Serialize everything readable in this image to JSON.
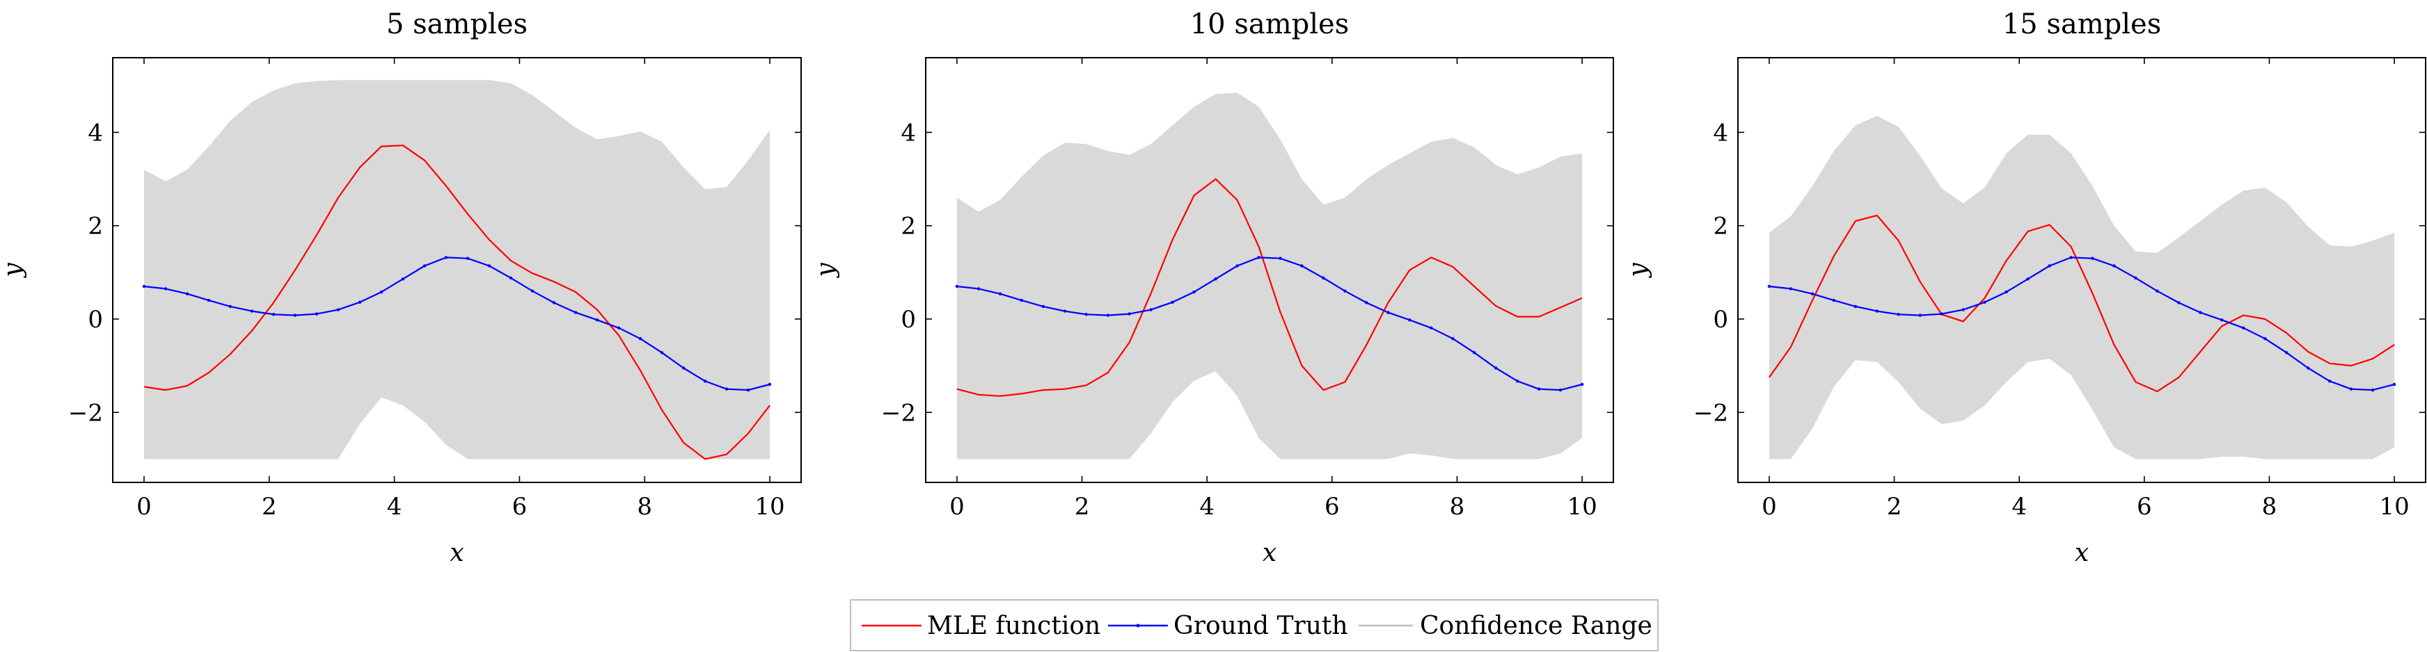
{
  "legend": {
    "mle_label": "MLE function",
    "truth_label": "Ground Truth",
    "confidence_label": "Confidence Range"
  },
  "colors": {
    "mle": "#ff0000",
    "truth": "#0000ff",
    "confidence": "#d9d9d9",
    "confidence_legend": "#bfbfbf"
  },
  "chart_data": [
    {
      "type": "line",
      "title": "5 samples",
      "xlabel": "x",
      "ylabel": "y",
      "xlim": [
        -0.5,
        10.5
      ],
      "ylim": [
        -3.5,
        5.6
      ],
      "xticks": [
        0,
        2,
        4,
        6,
        8,
        10
      ],
      "yticks": [
        -2,
        0,
        2,
        4
      ],
      "x": [
        0,
        0.345,
        0.69,
        1.034,
        1.379,
        1.724,
        2.069,
        2.414,
        2.759,
        3.103,
        3.448,
        3.793,
        4.138,
        4.483,
        4.828,
        5.172,
        5.517,
        5.862,
        6.207,
        6.552,
        6.897,
        7.241,
        7.586,
        7.931,
        8.276,
        8.621,
        8.966,
        9.31,
        9.655,
        10
      ],
      "series": [
        {
          "name": "MLE function",
          "values": [
            -1.45,
            -1.52,
            -1.43,
            -1.15,
            -0.75,
            -0.25,
            0.35,
            1.05,
            1.8,
            2.6,
            3.25,
            3.7,
            3.72,
            3.4,
            2.85,
            2.25,
            1.7,
            1.25,
            0.98,
            0.8,
            0.58,
            0.2,
            -0.35,
            -1.1,
            -1.95,
            -2.65,
            -3.0,
            -2.9,
            -2.45,
            -1.85
          ]
        },
        {
          "name": "Ground Truth",
          "values": [
            0.7,
            0.65,
            0.54,
            0.4,
            0.27,
            0.17,
            0.1,
            0.08,
            0.11,
            0.2,
            0.36,
            0.58,
            0.86,
            1.14,
            1.32,
            1.3,
            1.14,
            0.88,
            0.6,
            0.35,
            0.14,
            -0.02,
            -0.19,
            -0.42,
            -0.72,
            -1.05,
            -1.33,
            -1.5,
            -1.52,
            -1.4
          ]
        },
        {
          "name": "Confidence Range",
          "band": true,
          "upper": [
            3.2,
            2.95,
            3.2,
            3.7,
            4.25,
            4.65,
            4.9,
            5.05,
            5.1,
            5.12,
            5.12,
            5.12,
            5.12,
            5.12,
            5.12,
            5.12,
            5.12,
            5.05,
            4.8,
            4.45,
            4.1,
            3.85,
            3.92,
            4.02,
            3.8,
            3.25,
            2.78,
            2.83,
            3.4,
            4.05
          ],
          "lower": [
            -3,
            -3,
            -3,
            -3,
            -3,
            -3,
            -3,
            -3,
            -3,
            -3,
            -2.25,
            -1.68,
            -1.85,
            -2.2,
            -2.7,
            -3,
            -3,
            -3,
            -3,
            -3,
            -3,
            -3,
            -3,
            -3,
            -3,
            -3,
            -3,
            -3,
            -3,
            -3
          ]
        }
      ]
    },
    {
      "type": "line",
      "title": "10 samples",
      "xlabel": "x",
      "ylabel": "y",
      "xlim": [
        -0.5,
        10.5
      ],
      "ylim": [
        -3.5,
        5.6
      ],
      "xticks": [
        0,
        2,
        4,
        6,
        8,
        10
      ],
      "yticks": [
        -2,
        0,
        2,
        4
      ],
      "x": [
        0,
        0.345,
        0.69,
        1.034,
        1.379,
        1.724,
        2.069,
        2.414,
        2.759,
        3.103,
        3.448,
        3.793,
        4.138,
        4.483,
        4.828,
        5.172,
        5.517,
        5.862,
        6.207,
        6.552,
        6.897,
        7.241,
        7.586,
        7.931,
        8.276,
        8.621,
        8.966,
        9.31,
        9.655,
        10
      ],
      "series": [
        {
          "name": "MLE function",
          "values": [
            -1.5,
            -1.62,
            -1.65,
            -1.6,
            -1.52,
            -1.5,
            -1.42,
            -1.15,
            -0.5,
            0.55,
            1.7,
            2.65,
            3.0,
            2.55,
            1.55,
            0.15,
            -1.0,
            -1.52,
            -1.35,
            -0.55,
            0.35,
            1.05,
            1.32,
            1.12,
            0.7,
            0.28,
            0.05,
            0.05,
            0.25,
            0.45
          ]
        },
        {
          "name": "Ground Truth",
          "values": [
            0.7,
            0.65,
            0.54,
            0.4,
            0.27,
            0.17,
            0.1,
            0.08,
            0.11,
            0.2,
            0.36,
            0.58,
            0.86,
            1.14,
            1.32,
            1.3,
            1.14,
            0.88,
            0.6,
            0.35,
            0.14,
            -0.02,
            -0.19,
            -0.42,
            -0.72,
            -1.05,
            -1.33,
            -1.5,
            -1.52,
            -1.4
          ]
        },
        {
          "name": "Confidence Range",
          "band": true,
          "upper": [
            2.6,
            2.3,
            2.55,
            3.05,
            3.5,
            3.78,
            3.75,
            3.6,
            3.52,
            3.75,
            4.15,
            4.55,
            4.82,
            4.85,
            4.55,
            3.85,
            3.0,
            2.45,
            2.6,
            3.0,
            3.3,
            3.55,
            3.8,
            3.88,
            3.68,
            3.3,
            3.1,
            3.25,
            3.48,
            3.55
          ],
          "lower": [
            -3,
            -3,
            -3,
            -3,
            -3,
            -3,
            -3,
            -3,
            -3,
            -2.45,
            -1.78,
            -1.32,
            -1.12,
            -1.65,
            -2.55,
            -3,
            -3,
            -3,
            -3,
            -3,
            -3,
            -2.88,
            -2.92,
            -3,
            -3,
            -3,
            -3,
            -3,
            -2.88,
            -2.55
          ]
        }
      ]
    },
    {
      "type": "line",
      "title": "15 samples",
      "xlabel": "x",
      "ylabel": "y",
      "xlim": [
        -0.5,
        10.5
      ],
      "ylim": [
        -3.5,
        5.6
      ],
      "xticks": [
        0,
        2,
        4,
        6,
        8,
        10
      ],
      "yticks": [
        -2,
        0,
        2,
        4
      ],
      "x": [
        0,
        0.345,
        0.69,
        1.034,
        1.379,
        1.724,
        2.069,
        2.414,
        2.759,
        3.103,
        3.448,
        3.793,
        4.138,
        4.483,
        4.828,
        5.172,
        5.517,
        5.862,
        6.207,
        6.552,
        6.897,
        7.241,
        7.586,
        7.931,
        8.276,
        8.621,
        8.966,
        9.31,
        9.655,
        10
      ],
      "series": [
        {
          "name": "MLE function",
          "values": [
            -1.25,
            -0.6,
            0.4,
            1.35,
            2.1,
            2.22,
            1.68,
            0.8,
            0.1,
            -0.05,
            0.45,
            1.25,
            1.88,
            2.02,
            1.55,
            0.55,
            -0.55,
            -1.35,
            -1.55,
            -1.25,
            -0.7,
            -0.15,
            0.08,
            0.0,
            -0.3,
            -0.7,
            -0.95,
            -1.0,
            -0.85,
            -0.55
          ]
        },
        {
          "name": "Ground Truth",
          "values": [
            0.7,
            0.65,
            0.54,
            0.4,
            0.27,
            0.17,
            0.1,
            0.08,
            0.11,
            0.2,
            0.36,
            0.58,
            0.86,
            1.14,
            1.32,
            1.3,
            1.14,
            0.88,
            0.6,
            0.35,
            0.14,
            -0.02,
            -0.19,
            -0.42,
            -0.72,
            -1.05,
            -1.33,
            -1.5,
            -1.52,
            -1.4
          ]
        },
        {
          "name": "Confidence Range",
          "band": true,
          "upper": [
            1.85,
            2.2,
            2.85,
            3.6,
            4.15,
            4.35,
            4.12,
            3.5,
            2.8,
            2.48,
            2.82,
            3.55,
            3.95,
            3.95,
            3.55,
            2.85,
            2.0,
            1.45,
            1.42,
            1.75,
            2.1,
            2.45,
            2.75,
            2.82,
            2.5,
            1.98,
            1.58,
            1.55,
            1.68,
            1.85
          ],
          "lower": [
            -3,
            -3,
            -2.35,
            -1.45,
            -0.88,
            -0.92,
            -1.35,
            -1.92,
            -2.25,
            -2.18,
            -1.85,
            -1.35,
            -0.92,
            -0.85,
            -1.2,
            -1.95,
            -2.75,
            -3,
            -3,
            -3,
            -3,
            -2.95,
            -2.95,
            -3,
            -3,
            -3,
            -3,
            -3,
            -3,
            -2.75
          ]
        }
      ]
    }
  ]
}
